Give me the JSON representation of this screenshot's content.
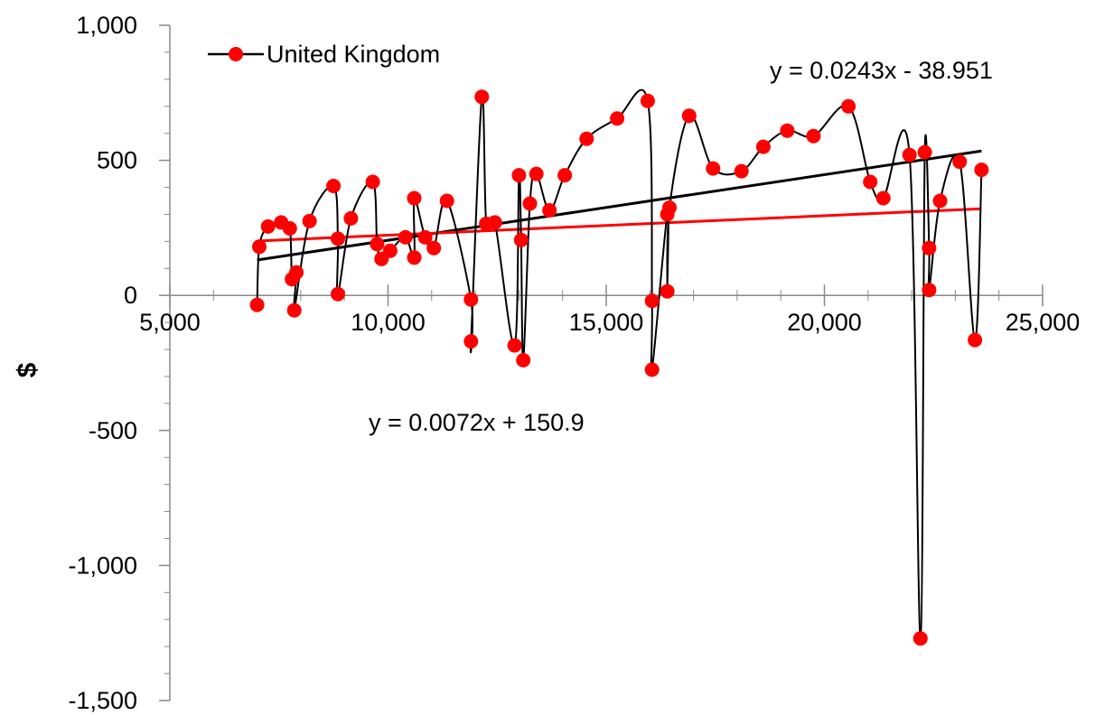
{
  "chart_data": {
    "type": "scatter",
    "title": "",
    "xlabel": "",
    "ylabel": "$",
    "xlim": [
      5000,
      25000
    ],
    "ylim": [
      -1500,
      1000
    ],
    "x_ticks": [
      5000,
      10000,
      15000,
      20000,
      25000
    ],
    "x_tick_labels": [
      "5,000",
      "10,000",
      "15,000",
      "20,000",
      "25,000"
    ],
    "y_ticks": [
      -1500,
      -1000,
      -500,
      0,
      500,
      1000
    ],
    "y_tick_labels": [
      "-1,500",
      "-1,000",
      "-500",
      "0",
      "500",
      "1,000"
    ],
    "grid": false,
    "legend": {
      "position": "top-left",
      "entries": [
        "United Kingdom"
      ]
    },
    "colors": {
      "series": "#ff0000",
      "connector": "#000000",
      "trend_linear_series": "#000000",
      "trend_red": "#ff0000"
    },
    "series": [
      {
        "name": "United Kingdom",
        "connect": "smooth-line",
        "points": [
          [
            7000,
            -35
          ],
          [
            7050,
            180
          ],
          [
            7250,
            255
          ],
          [
            7550,
            270
          ],
          [
            7750,
            248
          ],
          [
            7800,
            60
          ],
          [
            7900,
            85
          ],
          [
            7850,
            -55
          ],
          [
            8200,
            275
          ],
          [
            8750,
            405
          ],
          [
            8850,
            210
          ],
          [
            8850,
            5
          ],
          [
            9150,
            285
          ],
          [
            9650,
            420
          ],
          [
            9750,
            190
          ],
          [
            9850,
            135
          ],
          [
            10050,
            165
          ],
          [
            10400,
            215
          ],
          [
            10600,
            140
          ],
          [
            10600,
            360
          ],
          [
            10850,
            215
          ],
          [
            11050,
            175
          ],
          [
            11350,
            350
          ],
          [
            11900,
            -15
          ],
          [
            11900,
            -170
          ],
          [
            12150,
            735
          ],
          [
            12250,
            265
          ],
          [
            12450,
            270
          ],
          [
            12900,
            -185
          ],
          [
            13000,
            445
          ],
          [
            13050,
            205
          ],
          [
            13100,
            -240
          ],
          [
            13250,
            340
          ],
          [
            13400,
            450
          ],
          [
            13700,
            315
          ],
          [
            14050,
            445
          ],
          [
            14550,
            580
          ],
          [
            15250,
            655
          ],
          [
            15950,
            720
          ],
          [
            16050,
            -20
          ],
          [
            16050,
            -275
          ],
          [
            16400,
            300
          ],
          [
            16400,
            15
          ],
          [
            16450,
            325
          ],
          [
            16900,
            665
          ],
          [
            17450,
            470
          ],
          [
            18100,
            460
          ],
          [
            18600,
            550
          ],
          [
            19150,
            610
          ],
          [
            19750,
            590
          ],
          [
            20550,
            700
          ],
          [
            21050,
            420
          ],
          [
            21350,
            360
          ],
          [
            21950,
            520
          ],
          [
            22200,
            -1270
          ],
          [
            22300,
            530
          ],
          [
            22400,
            175
          ],
          [
            22400,
            20
          ],
          [
            22650,
            350
          ],
          [
            23100,
            495
          ],
          [
            23450,
            -165
          ],
          [
            23600,
            465
          ]
        ]
      }
    ],
    "trendlines": [
      {
        "label": "y = 0.0243x - 38.951",
        "slope": 0.0243,
        "intercept": -38.951,
        "x_range": [
          7000,
          23600
        ],
        "color": "#000000"
      },
      {
        "label": "y = 0.0072x + 150.9",
        "slope": 0.0072,
        "intercept": 150.9,
        "x_range": [
          7000,
          23600
        ],
        "color": "#ff0000"
      }
    ]
  }
}
